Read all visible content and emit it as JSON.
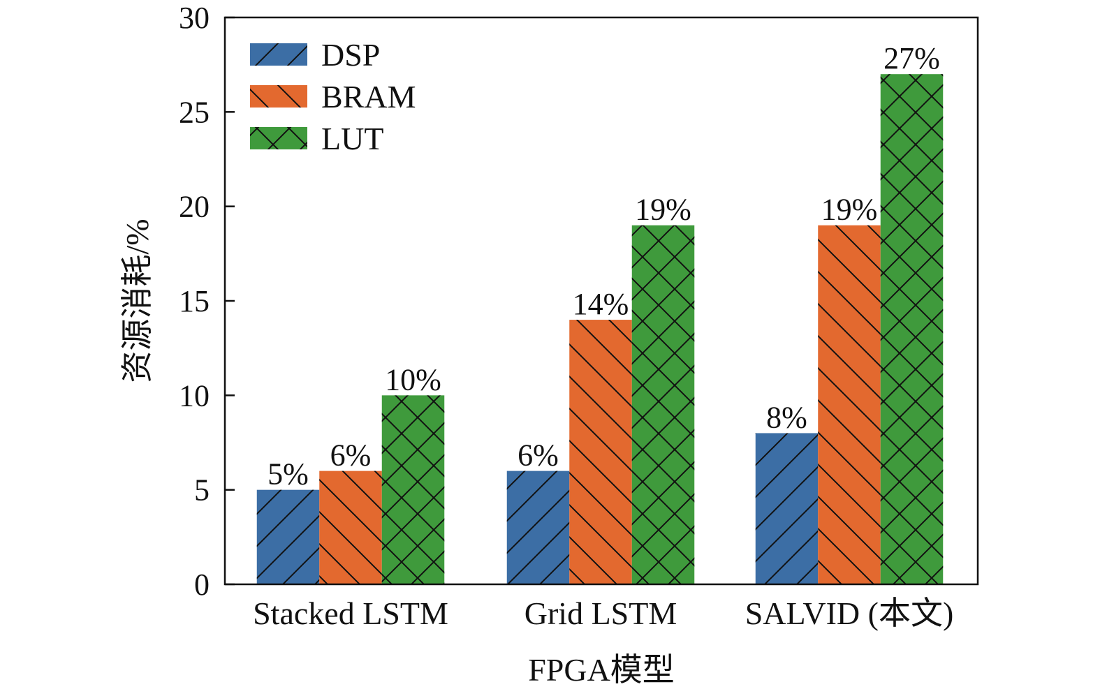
{
  "chart_data": {
    "type": "bar",
    "xlabel": "FPGA模型",
    "ylabel": "资源消耗/%",
    "ylim": [
      0,
      30
    ],
    "yticks": [
      0,
      5,
      10,
      15,
      20,
      25,
      30
    ],
    "categories": [
      "Stacked LSTM",
      "Grid LSTM",
      "SALVID (本文)"
    ],
    "series": [
      {
        "name": "DSP",
        "values": [
          5,
          6,
          8
        ],
        "labels": [
          "5%",
          "6%",
          "8%"
        ],
        "color": "#3c6ea5",
        "pattern": "diagonal-forward"
      },
      {
        "name": "BRAM",
        "values": [
          6,
          14,
          19
        ],
        "labels": [
          "6%",
          "14%",
          "19%"
        ],
        "color": "#e3692f",
        "pattern": "diagonal-back"
      },
      {
        "name": "LUT",
        "values": [
          10,
          19,
          27
        ],
        "labels": [
          "10%",
          "19%",
          "27%"
        ],
        "color": "#3f9a3c",
        "pattern": "crosshatch"
      }
    ],
    "legend": {
      "position": "top-left"
    },
    "grid": false
  }
}
